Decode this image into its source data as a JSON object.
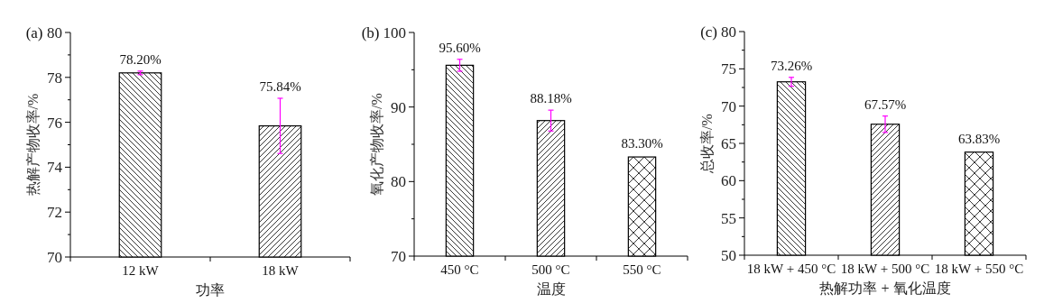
{
  "chart_data": [
    {
      "type": "bar",
      "title": "(a)",
      "xlabel": "功率",
      "ylabel": "热解产物收率/%",
      "categories": [
        "12 kW",
        "18 kW"
      ],
      "values": [
        78.2,
        75.84
      ],
      "errors": [
        0.08,
        1.23
      ],
      "value_labels": [
        "78.20%",
        "75.84%"
      ],
      "ylim": [
        70,
        80
      ],
      "yticks": [
        70,
        72,
        74,
        76,
        78,
        80
      ]
    },
    {
      "type": "bar",
      "title": "(b)",
      "xlabel": "温度",
      "ylabel": "氧化产物收率/%",
      "categories": [
        "450 °C",
        "500 °C",
        "550 °C"
      ],
      "values": [
        95.6,
        88.18,
        83.3
      ],
      "errors": [
        0.8,
        1.4,
        null
      ],
      "value_labels": [
        "95.60%",
        "88.18%",
        "83.30%"
      ],
      "ylim": [
        70,
        100
      ],
      "yticks": [
        70,
        80,
        90,
        100
      ]
    },
    {
      "type": "bar",
      "title": "(c)",
      "xlabel": "热解功率 + 氧化温度",
      "ylabel": "总收率/%",
      "categories": [
        "18 kW + 450 °C",
        "18 kW + 500 °C",
        "18 kW + 550 °C"
      ],
      "values": [
        73.26,
        67.57,
        63.83
      ],
      "errors": [
        0.6,
        1.1,
        null
      ],
      "value_labels": [
        "73.26%",
        "67.57%",
        "63.83%"
      ],
      "ylim": [
        50,
        80
      ],
      "yticks": [
        50,
        55,
        60,
        65,
        70,
        75,
        80
      ]
    }
  ]
}
